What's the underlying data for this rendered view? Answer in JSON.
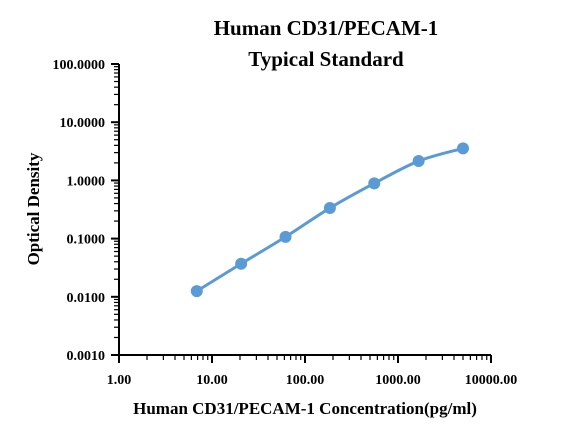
{
  "chart_data": {
    "type": "scatter",
    "title_lines": [
      "Human CD31/PECAM-1",
      "Typical Standard"
    ],
    "xlabel": "Human CD31/PECAM-1 Concentration(pg/ml)",
    "ylabel": "Optical Density",
    "x_scale": "log",
    "y_scale": "log",
    "xlim": [
      1,
      10000
    ],
    "ylim": [
      0.001,
      100
    ],
    "x_ticks": [
      "1.00",
      "10.00",
      "100.00",
      "1000.00",
      "10000.00"
    ],
    "y_ticks": [
      "0.0010",
      "0.0100",
      "0.1000",
      "1.0000",
      "10.0000",
      "100.0000"
    ],
    "grid": false,
    "legend": "none",
    "series": [
      {
        "color": "#5b9bd5",
        "x": [
          6.86,
          20.58,
          61.73,
          185.19,
          555.56,
          1666.67,
          5000
        ],
        "y": [
          0.0125,
          0.037,
          0.107,
          0.335,
          0.89,
          2.15,
          3.55
        ]
      }
    ]
  }
}
